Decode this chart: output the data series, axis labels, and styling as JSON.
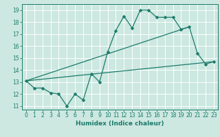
{
  "bg_color": "#cce8e0",
  "grid_color": "#ffffff",
  "line_color": "#1a7a6a",
  "xlabel": "Humidex (Indice chaleur)",
  "ylim": [
    10.7,
    19.5
  ],
  "xlim": [
    -0.5,
    23.5
  ],
  "yticks": [
    11,
    12,
    13,
    14,
    15,
    16,
    17,
    18,
    19
  ],
  "xticks": [
    0,
    1,
    2,
    3,
    4,
    5,
    6,
    7,
    8,
    9,
    10,
    11,
    12,
    13,
    14,
    15,
    16,
    17,
    18,
    19,
    20,
    21,
    22,
    23
  ],
  "line1_x": [
    0,
    1,
    2,
    3,
    4,
    5,
    6,
    7,
    8,
    9,
    10,
    11,
    12,
    13,
    14,
    15,
    16,
    17,
    18,
    19,
    20,
    21,
    22,
    23
  ],
  "line1_y": [
    13.1,
    12.5,
    12.5,
    12.1,
    12.0,
    11.0,
    12.0,
    11.5,
    13.7,
    13.0,
    15.5,
    17.3,
    18.5,
    17.5,
    19.0,
    19.0,
    18.4,
    18.4,
    18.4,
    17.4,
    17.6,
    15.4,
    14.5,
    14.7
  ],
  "line2_x": [
    0,
    23
  ],
  "line2_y": [
    13.1,
    14.7
  ],
  "line3_x": [
    0,
    20
  ],
  "line3_y": [
    13.1,
    17.6
  ],
  "marker_size": 2.5,
  "tick_fontsize": 5.5,
  "xlabel_fontsize": 6.5
}
